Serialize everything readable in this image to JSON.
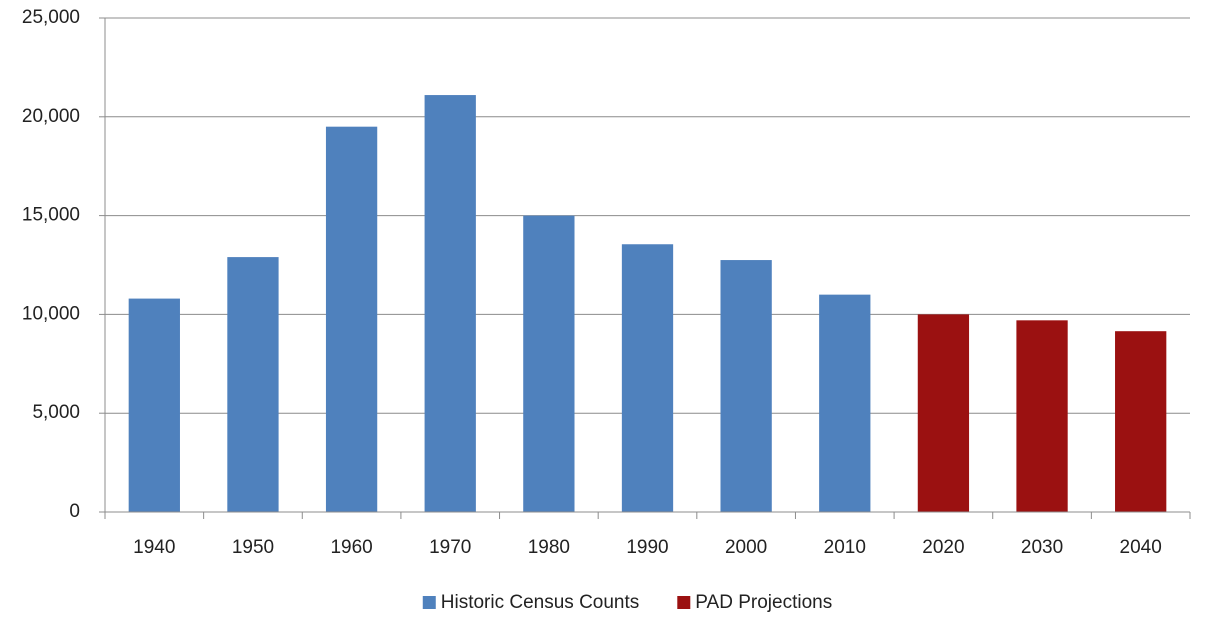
{
  "chart_data": {
    "type": "bar",
    "categories": [
      "1940",
      "1950",
      "1960",
      "1970",
      "1980",
      "1990",
      "2000",
      "2010",
      "2020",
      "2030",
      "2040"
    ],
    "series": [
      {
        "name": "Historic Census Counts",
        "color": "#4f81bd",
        "values": [
          10800,
          12900,
          19500,
          21100,
          15000,
          13550,
          12750,
          11000,
          null,
          null,
          null
        ]
      },
      {
        "name": "PAD Projections",
        "color": "#9b1111",
        "values": [
          null,
          null,
          null,
          null,
          null,
          null,
          null,
          null,
          10000,
          9700,
          9150
        ]
      }
    ],
    "ylim": [
      0,
      25000
    ],
    "yticks": [
      0,
      {
        "value": 5000,
        "label": "5,000"
      },
      {
        "value": 10000,
        "label": "10,000"
      },
      {
        "value": 15000,
        "label": "15,000"
      },
      {
        "value": 20000,
        "label": "20,000"
      },
      {
        "value": 25000,
        "label": "25,000"
      }
    ],
    "grid": true,
    "legend": "bottom"
  }
}
